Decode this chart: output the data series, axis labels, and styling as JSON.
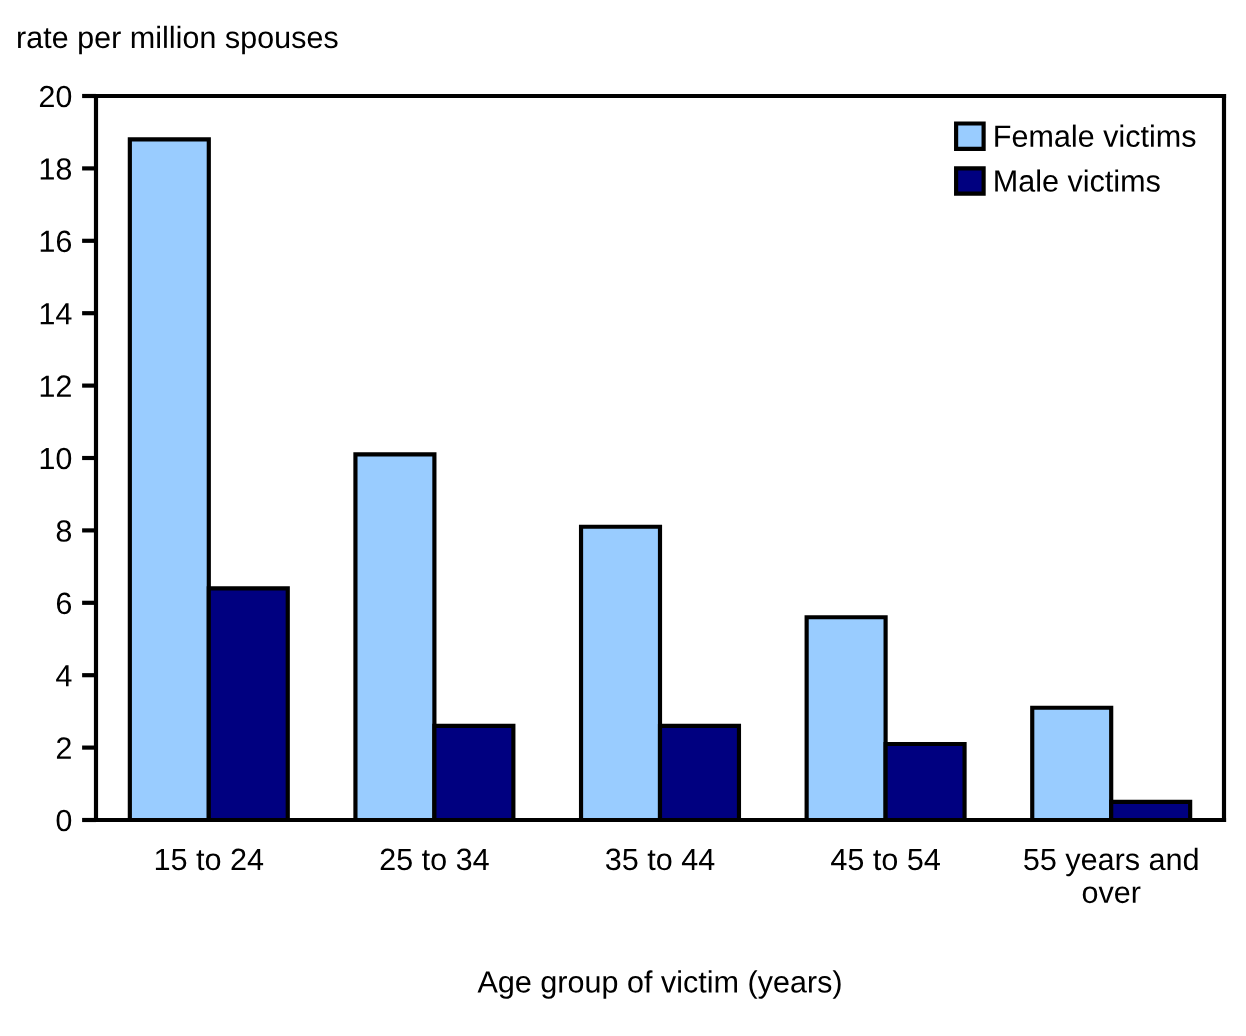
{
  "chart_data": {
    "type": "bar",
    "ylabel": "rate per million spouses",
    "xlabel": "Age group of victim (years)",
    "categories": [
      "15 to 24",
      "25 to 34",
      "35 to 44",
      "45 to 54",
      "55 years and\nover"
    ],
    "series": [
      {
        "name": "Female victims",
        "color": "#99ccff",
        "values": [
          18.8,
          10.1,
          8.1,
          5.6,
          3.1
        ]
      },
      {
        "name": "Male victims",
        "color": "#000080",
        "values": [
          6.4,
          2.6,
          2.6,
          2.1,
          0.5
        ]
      }
    ],
    "ylim": [
      0,
      20
    ],
    "yticks": [
      0,
      2,
      4,
      6,
      8,
      10,
      12,
      14,
      16,
      18,
      20
    ],
    "grid": false,
    "legend": "top right"
  }
}
